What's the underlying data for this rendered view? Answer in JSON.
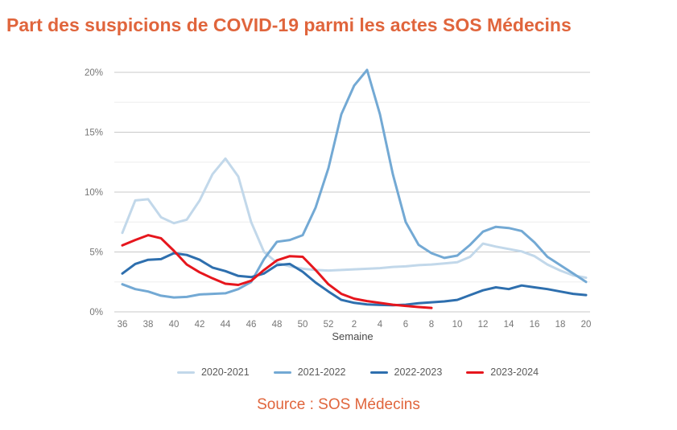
{
  "title": "Part des suspicions de COVID-19 parmi les actes SOS Médecins",
  "source": "Source : SOS Médecins",
  "colors": {
    "title": "#e0653c",
    "source": "#e0653c",
    "axis_text": "#767676",
    "xlabel_text": "#4a4a4a",
    "grid_major": "#c9c9c9",
    "grid_minor": "#ededed"
  },
  "chart_data": {
    "type": "line",
    "title": "Part des suspicions de COVID-19 parmi les actes SOS Médecins",
    "xlabel": "Semaine",
    "ylabel": "",
    "ylim": [
      0,
      20
    ],
    "grid": true,
    "legend_position": "bottom",
    "x_weeks": [
      36,
      37,
      38,
      39,
      40,
      41,
      42,
      43,
      44,
      45,
      46,
      47,
      48,
      49,
      50,
      51,
      52,
      1,
      2,
      3,
      4,
      5,
      6,
      7,
      8,
      9,
      10,
      11,
      12,
      13,
      14,
      15,
      16,
      17,
      18,
      19,
      20
    ],
    "x_tick_labels": [
      "36",
      "38",
      "40",
      "42",
      "44",
      "46",
      "48",
      "50",
      "52",
      "2",
      "4",
      "6",
      "8",
      "10",
      "12",
      "14",
      "16",
      "18",
      "20"
    ],
    "y_ticks": [
      0,
      5,
      10,
      15,
      20
    ],
    "y_tick_labels": [
      "0%",
      "5%",
      "10%",
      "15%",
      "20%"
    ],
    "y_minor_step": 2.5,
    "series": [
      {
        "name": "2020-2021",
        "color": "#c2d8ea",
        "values": [
          6.6,
          9.3,
          9.4,
          7.9,
          7.4,
          7.7,
          9.3,
          11.5,
          12.8,
          11.3,
          7.5,
          5.0,
          4.1,
          3.8,
          3.6,
          3.5,
          3.45,
          3.5,
          3.55,
          3.6,
          3.65,
          3.75,
          3.8,
          3.9,
          3.95,
          4.05,
          4.15,
          4.6,
          5.7,
          5.45,
          5.25,
          5.05,
          4.65,
          3.95,
          3.45,
          3.05,
          2.85
        ]
      },
      {
        "name": "2021-2022",
        "color": "#73a9d4",
        "values": [
          2.3,
          1.9,
          1.7,
          1.35,
          1.2,
          1.25,
          1.45,
          1.5,
          1.55,
          1.9,
          2.5,
          4.4,
          5.85,
          6.0,
          6.4,
          8.7,
          12.0,
          16.5,
          18.9,
          20.2,
          16.5,
          11.5,
          7.5,
          5.6,
          4.9,
          4.5,
          4.7,
          5.6,
          6.7,
          7.1,
          7.0,
          6.75,
          5.8,
          4.6,
          3.9,
          3.2,
          2.5
        ]
      },
      {
        "name": "2022-2023",
        "color": "#2e6fae",
        "values": [
          3.2,
          4.0,
          4.35,
          4.4,
          4.9,
          4.75,
          4.35,
          3.7,
          3.4,
          3.0,
          2.9,
          3.2,
          3.9,
          4.0,
          3.35,
          2.45,
          1.7,
          1.0,
          0.75,
          0.62,
          0.58,
          0.56,
          0.6,
          0.72,
          0.8,
          0.87,
          1.0,
          1.4,
          1.8,
          2.05,
          1.9,
          2.2,
          2.05,
          1.9,
          1.7,
          1.5,
          1.4
        ]
      },
      {
        "name": "2023-2024",
        "color": "#e6161d",
        "values": [
          5.55,
          6.0,
          6.4,
          6.15,
          5.1,
          3.95,
          3.3,
          2.8,
          2.35,
          2.25,
          2.6,
          3.5,
          4.3,
          4.65,
          4.6,
          3.5,
          2.3,
          1.5,
          1.1,
          0.9,
          0.75,
          0.6,
          0.5,
          0.4,
          0.33
        ]
      }
    ]
  }
}
